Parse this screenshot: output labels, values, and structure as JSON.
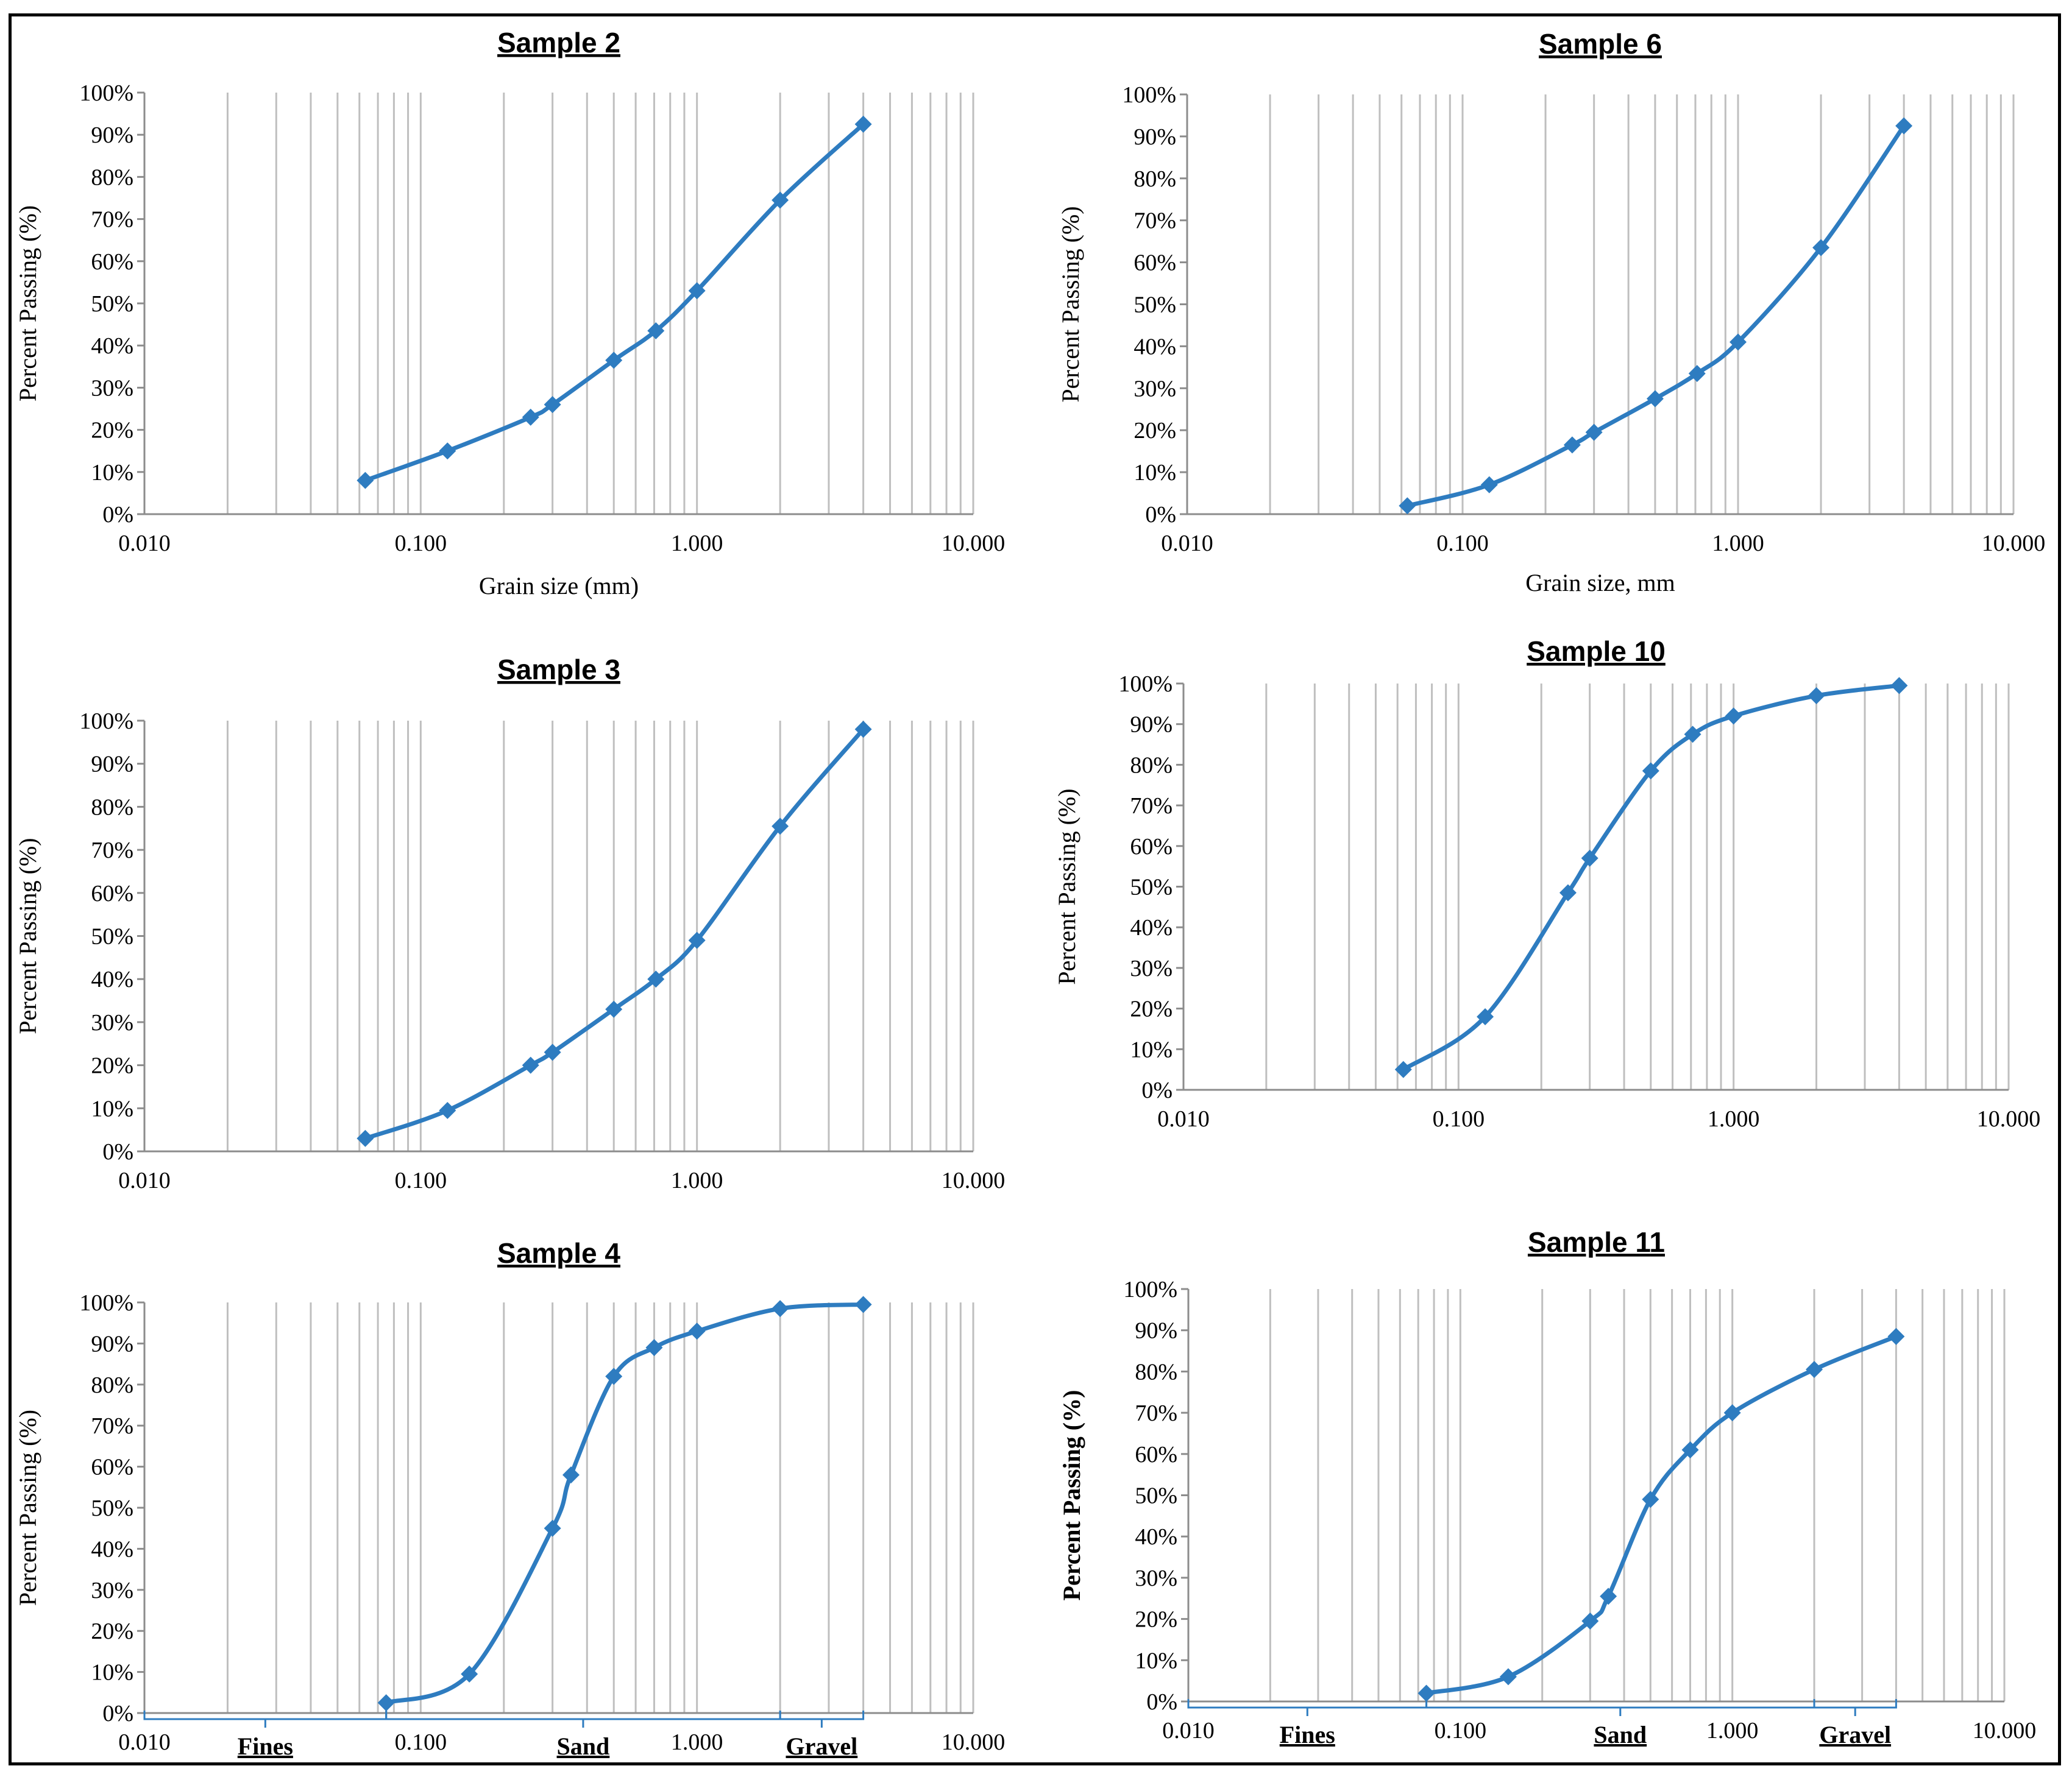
{
  "colors": {
    "series": "#2e7cc0",
    "grid": "#bfbfbf",
    "frame": "#000000"
  },
  "chart_data": [
    {
      "type": "line",
      "title": "Sample 2",
      "xlabel": "Grain size (mm)",
      "ylabel": "Percent Passing (%)",
      "xscale": "log",
      "xlim": [
        0.01,
        10
      ],
      "ylim": [
        0,
        100
      ],
      "grid": "vertical",
      "xtick_labels": [
        "0.010",
        "0.100",
        "1.000",
        "10.000"
      ],
      "ytick_labels": [
        "0%",
        "10%",
        "20%",
        "30%",
        "40%",
        "50%",
        "60%",
        "70%",
        "80%",
        "90%",
        "100%"
      ],
      "x": [
        0.063,
        0.125,
        0.25,
        0.3,
        0.5,
        0.71,
        1.0,
        2.0,
        4.0
      ],
      "y": [
        8,
        15,
        23,
        26,
        36.5,
        43.5,
        53,
        74.5,
        92.5
      ]
    },
    {
      "type": "line",
      "title": "Sample 6",
      "xlabel": "Grain size, mm",
      "ylabel": "Percent Passing (%)",
      "xscale": "log",
      "xlim": [
        0.01,
        10
      ],
      "ylim": [
        0,
        100
      ],
      "grid": "vertical",
      "xtick_labels": [
        "0.010",
        "0.100",
        "1.000",
        "10.000"
      ],
      "ytick_labels": [
        "0%",
        "10%",
        "20%",
        "30%",
        "40%",
        "50%",
        "60%",
        "70%",
        "80%",
        "90%",
        "100%"
      ],
      "x": [
        0.063,
        0.125,
        0.25,
        0.3,
        0.5,
        0.71,
        1.0,
        2.0,
        4.0
      ],
      "y": [
        2,
        7,
        16.5,
        19.5,
        27.5,
        33.5,
        41,
        63.5,
        92.5
      ]
    },
    {
      "type": "line",
      "title": "Sample 3",
      "xlabel": "",
      "ylabel": "Percent Passing (%)",
      "xscale": "log",
      "xlim": [
        0.01,
        10
      ],
      "ylim": [
        0,
        100
      ],
      "grid": "vertical",
      "xtick_labels": [
        "0.010",
        "0.100",
        "1.000",
        "10.000"
      ],
      "ytick_labels": [
        "0%",
        "10%",
        "20%",
        "30%",
        "40%",
        "50%",
        "60%",
        "70%",
        "80%",
        "90%",
        "100%"
      ],
      "x": [
        0.063,
        0.125,
        0.25,
        0.3,
        0.5,
        0.71,
        1.0,
        2.0,
        4.0
      ],
      "y": [
        3,
        9.5,
        20,
        23,
        33,
        40,
        49,
        75.5,
        98
      ]
    },
    {
      "type": "line",
      "title": "Sample 10",
      "xlabel": "",
      "ylabel": "Percent Passing (%)",
      "xscale": "log",
      "xlim": [
        0.01,
        10
      ],
      "ylim": [
        0,
        100
      ],
      "grid": "vertical",
      "xtick_labels": [
        "0.010",
        "0.100",
        "1.000",
        "10.000"
      ],
      "ytick_labels": [
        "0%",
        "10%",
        "20%",
        "30%",
        "40%",
        "50%",
        "60%",
        "70%",
        "80%",
        "90%",
        "100%"
      ],
      "x": [
        0.063,
        0.125,
        0.25,
        0.3,
        0.5,
        0.71,
        1.0,
        2.0,
        4.0
      ],
      "y": [
        5,
        18,
        48.5,
        57,
        78.5,
        87.5,
        92,
        97,
        99.5
      ]
    },
    {
      "type": "line",
      "title": "Sample 4",
      "xlabel": "",
      "ylabel": "Percent Passing (%)",
      "xscale": "log",
      "xlim": [
        0.01,
        10
      ],
      "ylim": [
        0,
        100
      ],
      "grid": "vertical",
      "xtick_labels": [
        "0.010",
        "0.100",
        "1.000",
        "10.000"
      ],
      "ytick_labels": [
        "0%",
        "10%",
        "20%",
        "30%",
        "40%",
        "50%",
        "60%",
        "70%",
        "80%",
        "90%",
        "100%"
      ],
      "x": [
        0.075,
        0.15,
        0.3,
        0.35,
        0.5,
        0.7,
        1.0,
        2.0,
        4.0
      ],
      "y": [
        2.5,
        9.5,
        45,
        58,
        82,
        89,
        93,
        98.5,
        99.5
      ],
      "classes": [
        {
          "label": "Fines",
          "from": 0.01,
          "to": 0.075
        },
        {
          "label": "Sand",
          "from": 0.075,
          "to": 2.0
        },
        {
          "label": "Gravel",
          "from": 2.0,
          "to": 4.0
        }
      ]
    },
    {
      "type": "line",
      "title": "Sample 11",
      "xlabel": "",
      "ylabel": "Percent Passing (%)",
      "xscale": "log",
      "xlim": [
        0.01,
        10
      ],
      "ylim": [
        0,
        100
      ],
      "grid": "vertical",
      "xtick_labels": [
        "0.010",
        "0.100",
        "1.000",
        "10.000"
      ],
      "ytick_labels": [
        "0%",
        "10%",
        "20%",
        "30%",
        "40%",
        "50%",
        "60%",
        "70%",
        "80%",
        "90%",
        "100%"
      ],
      "x": [
        0.075,
        0.15,
        0.3,
        0.35,
        0.5,
        0.7,
        1.0,
        2.0,
        4.0
      ],
      "y": [
        2,
        6,
        19.5,
        25.5,
        49,
        61,
        70,
        80.5,
        88.5
      ],
      "classes": [
        {
          "label": "Fines",
          "from": 0.01,
          "to": 0.075
        },
        {
          "label": "Sand",
          "from": 0.075,
          "to": 2.0
        },
        {
          "label": "Gravel",
          "from": 2.0,
          "to": 4.0
        }
      ]
    }
  ]
}
